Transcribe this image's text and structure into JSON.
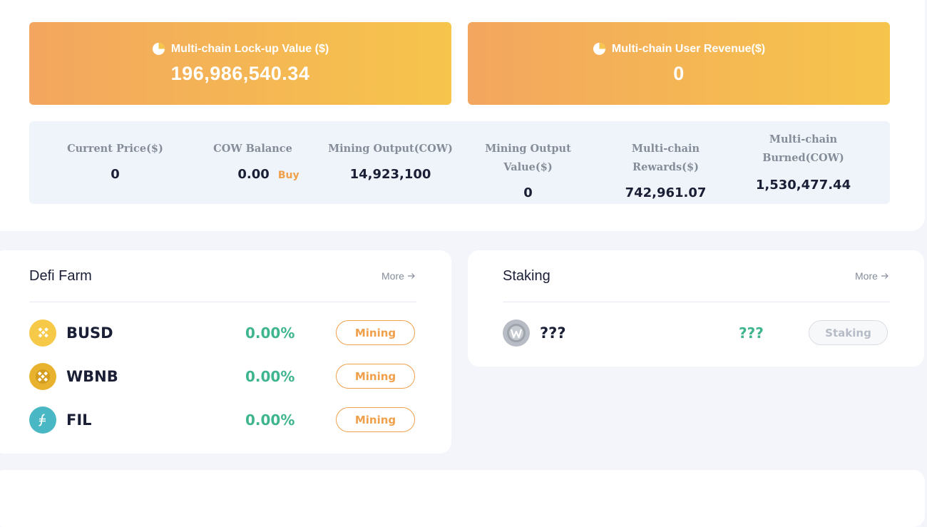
{
  "summary": {
    "lockup": {
      "label": "Multi-chain Lock-up Value ($)",
      "value": "196,986,540.34",
      "icon": "pie-chart-icon"
    },
    "revenue": {
      "label": "Multi-chain User Revenue($)",
      "value": "0",
      "icon": "pie-chart-icon"
    }
  },
  "metrics": {
    "current_price": {
      "label": "Current Price($)",
      "value": "0"
    },
    "cow_balance": {
      "label": "COW Balance",
      "value": "0.00",
      "buy_label": "Buy"
    },
    "mining_output": {
      "label": "Mining Output(COW)",
      "value": "14,923,100"
    },
    "mining_output_value": {
      "label": "Mining Output Value($)",
      "value": "0"
    },
    "rewards": {
      "label": "Multi-chain Rewards($)",
      "value": "742,961.07"
    },
    "burned": {
      "label_line1": "Multi-chain",
      "label_line2": "Burned(COW)",
      "value": "1,530,477.44"
    }
  },
  "defi_farm": {
    "title": "Defi Farm",
    "more_label": "More",
    "rows": [
      {
        "name": "BUSD",
        "apy": "0.00%",
        "action": "Mining",
        "icon": "busd-icon",
        "color": "#f7c948"
      },
      {
        "name": "WBNB",
        "apy": "0.00%",
        "action": "Mining",
        "icon": "bnb-icon",
        "color": "#e8b22e"
      },
      {
        "name": "FIL",
        "apy": "0.00%",
        "action": "Mining",
        "icon": "filecoin-icon",
        "color": "#4ab7c4"
      }
    ]
  },
  "staking": {
    "title": "Staking",
    "more_label": "More",
    "rows": [
      {
        "name": "???",
        "apy": "???",
        "action": "Staking",
        "icon": "token-w-icon",
        "color": "#b8bcc4"
      }
    ]
  },
  "colors": {
    "accent": "#f0a04b",
    "apy_green": "#3fb58f",
    "banner_start": "#f3a65f",
    "banner_end": "#f6c54b"
  }
}
